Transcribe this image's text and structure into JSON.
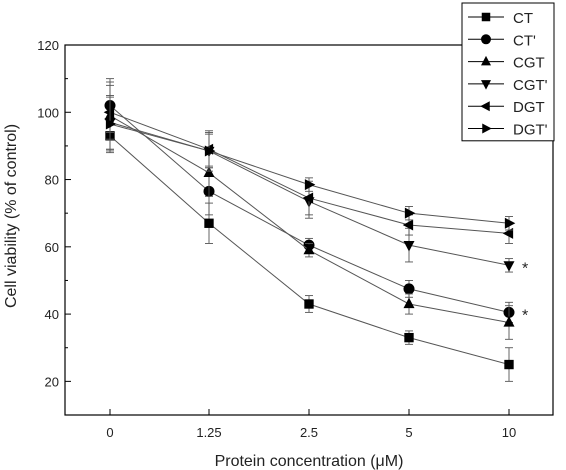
{
  "chart_data": {
    "type": "line",
    "title": "",
    "xlabel": "Protein concentration (μM)",
    "ylabel": "Cell viability (% of control)",
    "categories": [
      "0",
      "1.25",
      "2.5",
      "5",
      "10"
    ],
    "ylim": [
      10,
      120
    ],
    "yticks": [
      20,
      40,
      60,
      80,
      100,
      120
    ],
    "grid": false,
    "legend_position": "top-right",
    "annotations": [
      {
        "text": "*",
        "series": "CGT'",
        "category": "10"
      },
      {
        "text": "*",
        "series": "CT'",
        "category": "10"
      }
    ],
    "series": [
      {
        "name": "CT",
        "marker": "square",
        "values": [
          93,
          67,
          43,
          33,
          25
        ],
        "errors": [
          5,
          6,
          2.5,
          2,
          5
        ]
      },
      {
        "name": "CT'",
        "marker": "circle",
        "values": [
          102,
          76.5,
          60.5,
          47.5,
          40.5
        ],
        "errors": [
          8,
          7,
          2,
          2.5,
          3
        ]
      },
      {
        "name": "CGT",
        "marker": "triangle-up",
        "values": [
          99,
          82,
          59,
          43,
          37.5
        ],
        "errors": [
          10,
          7,
          2,
          3,
          5
        ]
      },
      {
        "name": "CGT'",
        "marker": "triangle-down",
        "values": [
          97,
          88.5,
          73.5,
          60.5,
          54.5
        ],
        "errors": [
          8,
          6,
          5,
          5,
          2
        ]
      },
      {
        "name": "DGT",
        "marker": "triangle-left",
        "values": [
          100,
          89,
          74.5,
          66.5,
          64
        ],
        "errors": [
          8,
          5,
          5,
          3,
          3
        ]
      },
      {
        "name": "DGT'",
        "marker": "triangle-right",
        "values": [
          96.5,
          88.5,
          78.5,
          70,
          67
        ],
        "errors": [
          8,
          5,
          2,
          2,
          2
        ]
      }
    ]
  }
}
